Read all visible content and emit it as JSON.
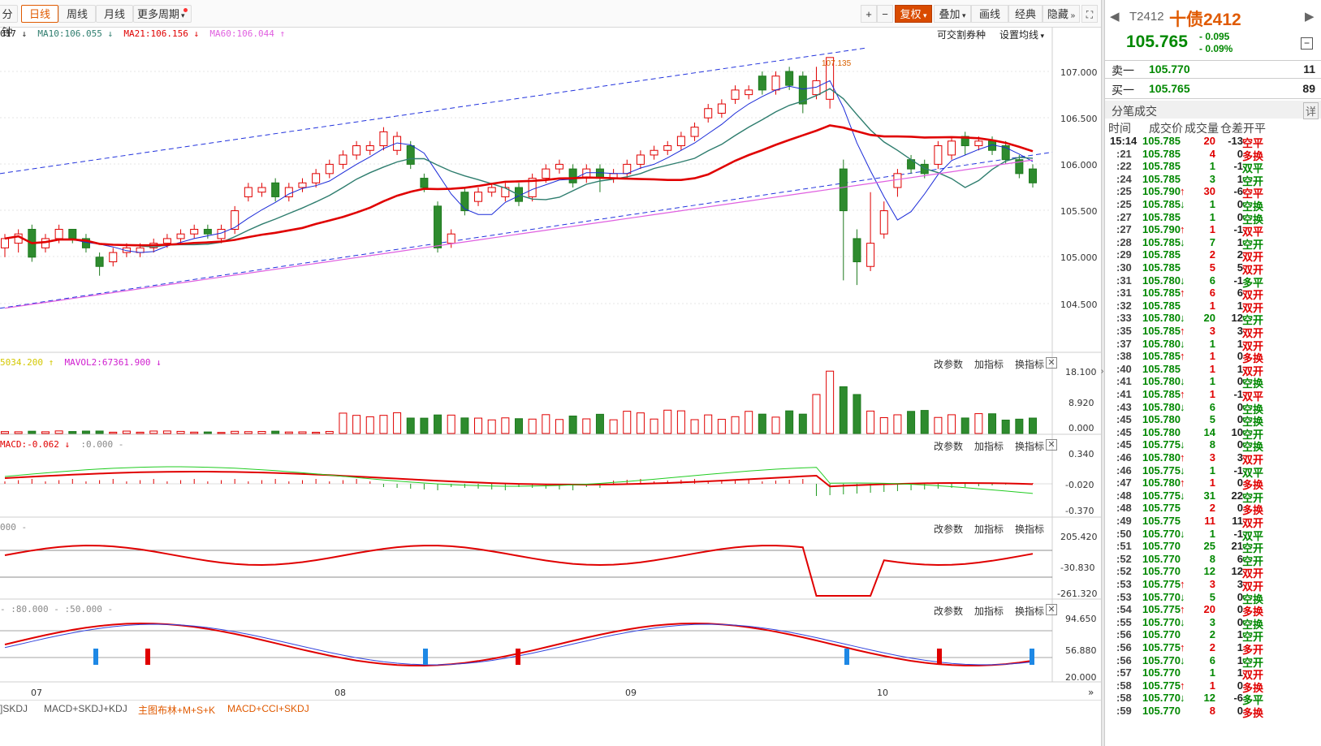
{
  "toolbar": {
    "tabs": [
      {
        "label": "分钟",
        "active": false
      },
      {
        "label": "日线",
        "active": true
      },
      {
        "label": "周线",
        "active": false
      },
      {
        "label": "月线",
        "active": false
      },
      {
        "label": "更多周期",
        "active": false
      }
    ],
    "right_buttons": [
      "+",
      "−",
      "复权",
      "叠加",
      "画线",
      "经典",
      "隐藏"
    ],
    "fullscreen_icon": "expand-icon"
  },
  "main_panel": {
    "legend": [
      {
        "text": "017",
        "color": "#222",
        "arrow": "↓"
      },
      {
        "text": "MA10:106.055",
        "color": "#2e7d6e",
        "arrow": "↓"
      },
      {
        "text": "MA21:106.156",
        "color": "#e00000",
        "arrow": "↓"
      },
      {
        "text": "MA60:106.044",
        "color": "#e060e0",
        "arrow": "↑"
      }
    ],
    "right_labels": [
      "可交割券种",
      "设置均线"
    ],
    "peak_label": "107.135",
    "y_ticks": [
      "107.000",
      "106.500",
      "106.000",
      "105.500",
      "105.000",
      "104.500"
    ]
  },
  "vol_panel": {
    "legend": [
      {
        "text": "5034.200",
        "color": "#d4c800",
        "arrow": "↑"
      },
      {
        "text": "MAVOL2:67361.900",
        "color": "#d020d0",
        "arrow": "↓"
      }
    ],
    "buttons": [
      "改参数",
      "加指标",
      "换指标"
    ],
    "y_ticks": [
      "18.100",
      "8.920",
      "0.000"
    ]
  },
  "macd_panel": {
    "legend": [
      {
        "text": "MACD:-0.062",
        "color": "#e00000",
        "arrow": "↓"
      },
      {
        "text": ":0.000 -",
        "color": "#888",
        "arrow": ""
      }
    ],
    "buttons": [
      "改参数",
      "加指标",
      "换指标"
    ],
    "y_ticks": [
      "0.340",
      "-0.020",
      "-0.370"
    ]
  },
  "cci_panel": {
    "legend": [
      {
        "text": "000 -",
        "color": "#888",
        "arrow": ""
      }
    ],
    "buttons": [
      "改参数",
      "加指标",
      "换指标"
    ],
    "y_ticks": [
      "205.420",
      "-30.830",
      "-261.320"
    ]
  },
  "skdj_panel": {
    "legend": [
      {
        "text": "- :80.000 - :50.000 -",
        "color": "#888",
        "arrow": ""
      }
    ],
    "buttons": [
      "改参数",
      "加指标",
      "换指标"
    ],
    "y_ticks": [
      "94.650",
      "56.880",
      "20.000"
    ]
  },
  "x_ticks": [
    "07",
    "08",
    "09",
    "10"
  ],
  "bottom_tabs": [
    {
      "label": "]SKDJ",
      "color": "#555"
    },
    {
      "label": "MACD+SKDJ+KDJ",
      "color": "#555"
    },
    {
      "label": "主图布林+M+S+K",
      "color": "#e05a00"
    },
    {
      "label": "MACD+CCI+SKDJ",
      "color": "#e05a00"
    }
  ],
  "quote": {
    "code": "T2412",
    "name": "十债2412",
    "price": "105.765",
    "change": "- 0.095",
    "change_pct": "- 0.09%",
    "ask_label": "卖一",
    "ask_price": "105.770",
    "ask_vol": "11",
    "bid_label": "买一",
    "bid_price": "105.765",
    "bid_vol": "89",
    "ticks_title": "分笔成交",
    "detail_label": "详",
    "headers": [
      "时间",
      "成交价",
      "成交量",
      "仓差",
      "开平"
    ]
  },
  "trades": [
    {
      "t": "15:14",
      "p": "105.785",
      "a": "",
      "v": "20",
      "d": "-13",
      "k": "空平",
      "pc": "g",
      "vc": "r",
      "kc": "r"
    },
    {
      "t": ":21",
      "p": "105.785",
      "a": "",
      "v": "4",
      "d": "0",
      "k": "多换",
      "pc": "g",
      "vc": "r",
      "kc": "r"
    },
    {
      "t": ":22",
      "p": "105.785",
      "a": "",
      "v": "1",
      "d": "-1",
      "k": "双平",
      "pc": "g",
      "vc": "g",
      "kc": "g"
    },
    {
      "t": ":24",
      "p": "105.785",
      "a": "",
      "v": "3",
      "d": "1",
      "k": "空开",
      "pc": "g",
      "vc": "g",
      "kc": "g"
    },
    {
      "t": ":25",
      "p": "105.790",
      "a": "↑",
      "v": "30",
      "d": "-6",
      "k": "空平",
      "pc": "g",
      "vc": "r",
      "kc": "r"
    },
    {
      "t": ":25",
      "p": "105.785",
      "a": "↓",
      "v": "1",
      "d": "0",
      "k": "空换",
      "pc": "g",
      "vc": "g",
      "kc": "g"
    },
    {
      "t": ":27",
      "p": "105.785",
      "a": "",
      "v": "1",
      "d": "0",
      "k": "空换",
      "pc": "g",
      "vc": "g",
      "kc": "g"
    },
    {
      "t": ":27",
      "p": "105.790",
      "a": "↑",
      "v": "1",
      "d": "-1",
      "k": "双平",
      "pc": "g",
      "vc": "r",
      "kc": "r"
    },
    {
      "t": ":28",
      "p": "105.785",
      "a": "↓",
      "v": "7",
      "d": "1",
      "k": "空开",
      "pc": "g",
      "vc": "g",
      "kc": "g"
    },
    {
      "t": ":29",
      "p": "105.785",
      "a": "",
      "v": "2",
      "d": "2",
      "k": "双开",
      "pc": "g",
      "vc": "r",
      "kc": "r"
    },
    {
      "t": ":30",
      "p": "105.785",
      "a": "",
      "v": "5",
      "d": "5",
      "k": "双开",
      "pc": "g",
      "vc": "r",
      "kc": "r"
    },
    {
      "t": ":31",
      "p": "105.780",
      "a": "↓",
      "v": "6",
      "d": "-1",
      "k": "多平",
      "pc": "g",
      "vc": "g",
      "kc": "g"
    },
    {
      "t": ":31",
      "p": "105.785",
      "a": "↑",
      "v": "6",
      "d": "6",
      "k": "双开",
      "pc": "g",
      "vc": "r",
      "kc": "r"
    },
    {
      "t": ":32",
      "p": "105.785",
      "a": "",
      "v": "1",
      "d": "1",
      "k": "双开",
      "pc": "g",
      "vc": "r",
      "kc": "r"
    },
    {
      "t": ":33",
      "p": "105.780",
      "a": "↓",
      "v": "20",
      "d": "12",
      "k": "空开",
      "pc": "g",
      "vc": "g",
      "kc": "g"
    },
    {
      "t": ":35",
      "p": "105.785",
      "a": "↑",
      "v": "3",
      "d": "3",
      "k": "双开",
      "pc": "g",
      "vc": "r",
      "kc": "r"
    },
    {
      "t": ":37",
      "p": "105.780",
      "a": "↓",
      "v": "1",
      "d": "1",
      "k": "双开",
      "pc": "g",
      "vc": "g",
      "kc": "r"
    },
    {
      "t": ":38",
      "p": "105.785",
      "a": "↑",
      "v": "1",
      "d": "0",
      "k": "多换",
      "pc": "g",
      "vc": "r",
      "kc": "r"
    },
    {
      "t": ":40",
      "p": "105.785",
      "a": "",
      "v": "1",
      "d": "1",
      "k": "双开",
      "pc": "g",
      "vc": "r",
      "kc": "r"
    },
    {
      "t": ":41",
      "p": "105.780",
      "a": "↓",
      "v": "1",
      "d": "0",
      "k": "空换",
      "pc": "g",
      "vc": "g",
      "kc": "g"
    },
    {
      "t": ":41",
      "p": "105.785",
      "a": "↑",
      "v": "1",
      "d": "-1",
      "k": "双平",
      "pc": "g",
      "vc": "r",
      "kc": "r"
    },
    {
      "t": ":43",
      "p": "105.780",
      "a": "↓",
      "v": "6",
      "d": "0",
      "k": "空换",
      "pc": "g",
      "vc": "g",
      "kc": "g"
    },
    {
      "t": ":45",
      "p": "105.780",
      "a": "",
      "v": "5",
      "d": "0",
      "k": "空换",
      "pc": "g",
      "vc": "g",
      "kc": "g"
    },
    {
      "t": ":45",
      "p": "105.780",
      "a": "",
      "v": "14",
      "d": "10",
      "k": "空开",
      "pc": "g",
      "vc": "g",
      "kc": "g"
    },
    {
      "t": ":45",
      "p": "105.775",
      "a": "↓",
      "v": "8",
      "d": "0",
      "k": "空换",
      "pc": "g",
      "vc": "g",
      "kc": "g"
    },
    {
      "t": ":46",
      "p": "105.780",
      "a": "↑",
      "v": "3",
      "d": "3",
      "k": "双开",
      "pc": "g",
      "vc": "r",
      "kc": "r"
    },
    {
      "t": ":46",
      "p": "105.775",
      "a": "↓",
      "v": "1",
      "d": "-1",
      "k": "双平",
      "pc": "g",
      "vc": "g",
      "kc": "g"
    },
    {
      "t": ":47",
      "p": "105.780",
      "a": "↑",
      "v": "1",
      "d": "0",
      "k": "多换",
      "pc": "g",
      "vc": "r",
      "kc": "r"
    },
    {
      "t": ":48",
      "p": "105.775",
      "a": "↓",
      "v": "31",
      "d": "22",
      "k": "空开",
      "pc": "g",
      "vc": "g",
      "kc": "g"
    },
    {
      "t": ":48",
      "p": "105.775",
      "a": "",
      "v": "2",
      "d": "0",
      "k": "多换",
      "pc": "g",
      "vc": "r",
      "kc": "r"
    },
    {
      "t": ":49",
      "p": "105.775",
      "a": "",
      "v": "11",
      "d": "11",
      "k": "双开",
      "pc": "g",
      "vc": "r",
      "kc": "r"
    },
    {
      "t": ":50",
      "p": "105.770",
      "a": "↓",
      "v": "1",
      "d": "-1",
      "k": "双平",
      "pc": "g",
      "vc": "g",
      "kc": "g"
    },
    {
      "t": ":51",
      "p": "105.770",
      "a": "",
      "v": "25",
      "d": "21",
      "k": "空开",
      "pc": "g",
      "vc": "g",
      "kc": "g"
    },
    {
      "t": ":52",
      "p": "105.770",
      "a": "",
      "v": "8",
      "d": "6",
      "k": "空开",
      "pc": "g",
      "vc": "g",
      "kc": "g"
    },
    {
      "t": ":52",
      "p": "105.770",
      "a": "",
      "v": "12",
      "d": "12",
      "k": "双开",
      "pc": "g",
      "vc": "g",
      "kc": "r"
    },
    {
      "t": ":53",
      "p": "105.775",
      "a": "↑",
      "v": "3",
      "d": "3",
      "k": "双开",
      "pc": "g",
      "vc": "r",
      "kc": "r"
    },
    {
      "t": ":53",
      "p": "105.770",
      "a": "↓",
      "v": "5",
      "d": "0",
      "k": "空换",
      "pc": "g",
      "vc": "g",
      "kc": "g"
    },
    {
      "t": ":54",
      "p": "105.775",
      "a": "↑",
      "v": "20",
      "d": "0",
      "k": "多换",
      "pc": "g",
      "vc": "r",
      "kc": "r"
    },
    {
      "t": ":55",
      "p": "105.770",
      "a": "↓",
      "v": "3",
      "d": "0",
      "k": "空换",
      "pc": "g",
      "vc": "g",
      "kc": "g"
    },
    {
      "t": ":56",
      "p": "105.770",
      "a": "",
      "v": "2",
      "d": "1",
      "k": "空开",
      "pc": "g",
      "vc": "g",
      "kc": "g"
    },
    {
      "t": ":56",
      "p": "105.775",
      "a": "↑",
      "v": "2",
      "d": "1",
      "k": "多开",
      "pc": "g",
      "vc": "r",
      "kc": "r"
    },
    {
      "t": ":56",
      "p": "105.770",
      "a": "↓",
      "v": "6",
      "d": "1",
      "k": "空开",
      "pc": "g",
      "vc": "g",
      "kc": "g"
    },
    {
      "t": ":57",
      "p": "105.770",
      "a": "",
      "v": "1",
      "d": "1",
      "k": "双开",
      "pc": "g",
      "vc": "g",
      "kc": "r"
    },
    {
      "t": ":58",
      "p": "105.775",
      "a": "↑",
      "v": "1",
      "d": "0",
      "k": "多换",
      "pc": "g",
      "vc": "r",
      "kc": "r"
    },
    {
      "t": ":58",
      "p": "105.770",
      "a": "↓",
      "v": "12",
      "d": "-6",
      "k": "多平",
      "pc": "g",
      "vc": "g",
      "kc": "g"
    },
    {
      "t": ":59",
      "p": "105.770",
      "a": "",
      "v": "8",
      "d": "0",
      "k": "多换",
      "pc": "g",
      "vc": "r",
      "kc": "r"
    }
  ],
  "colors": {
    "up": "#e00000",
    "down": "#008800",
    "accent": "#e05a00"
  }
}
